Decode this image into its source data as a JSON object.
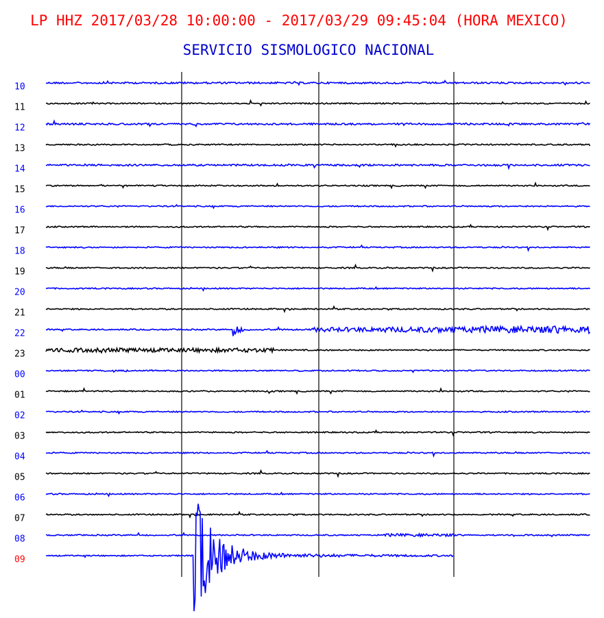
{
  "header": {
    "title": "LP HHZ 2017/03/28 10:00:00 - 2017/03/29 09:45:04 (HORA MEXICO)",
    "title_color": "#ff0000",
    "subtitle": "SERVICIO SISMOLOGICO NACIONAL",
    "subtitle_color": "#0000cc"
  },
  "rows": [
    {
      "label": "10",
      "color": "#0000ff",
      "label_color": "#0000ff"
    },
    {
      "label": "11",
      "color": "#000000",
      "label_color": "#000000"
    },
    {
      "label": "12",
      "color": "#0000ff",
      "label_color": "#0000ff"
    },
    {
      "label": "13",
      "color": "#000000",
      "label_color": "#000000"
    },
    {
      "label": "14",
      "color": "#0000ff",
      "label_color": "#0000ff"
    },
    {
      "label": "15",
      "color": "#000000",
      "label_color": "#000000"
    },
    {
      "label": "16",
      "color": "#0000ff",
      "label_color": "#0000ff"
    },
    {
      "label": "17",
      "color": "#000000",
      "label_color": "#000000"
    },
    {
      "label": "18",
      "color": "#0000ff",
      "label_color": "#0000ff"
    },
    {
      "label": "19",
      "color": "#000000",
      "label_color": "#000000"
    },
    {
      "label": "20",
      "color": "#0000ff",
      "label_color": "#0000ff"
    },
    {
      "label": "21",
      "color": "#000000",
      "label_color": "#000000"
    },
    {
      "label": "22",
      "color": "#0000ff",
      "label_color": "#0000ff"
    },
    {
      "label": "23",
      "color": "#000000",
      "label_color": "#000000"
    },
    {
      "label": "00",
      "color": "#0000ff",
      "label_color": "#0000ff"
    },
    {
      "label": "01",
      "color": "#000000",
      "label_color": "#000000"
    },
    {
      "label": "02",
      "color": "#0000ff",
      "label_color": "#0000ff"
    },
    {
      "label": "03",
      "color": "#000000",
      "label_color": "#000000"
    },
    {
      "label": "04",
      "color": "#0000ff",
      "label_color": "#0000ff"
    },
    {
      "label": "05",
      "color": "#000000",
      "label_color": "#000000"
    },
    {
      "label": "06",
      "color": "#0000ff",
      "label_color": "#0000ff"
    },
    {
      "label": "07",
      "color": "#000000",
      "label_color": "#000000"
    },
    {
      "label": "08",
      "color": "#0000ff",
      "label_color": "#0000ff"
    },
    {
      "label": "09",
      "color": "#0000ff",
      "label_color": "#ff0000"
    }
  ]
}
